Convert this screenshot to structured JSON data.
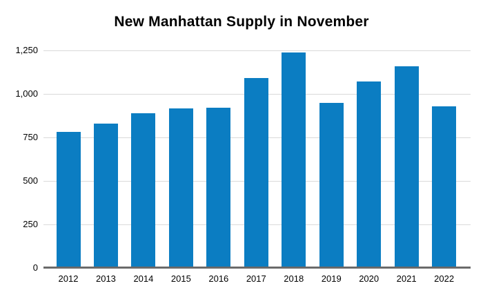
{
  "title": "New Manhattan Supply in November",
  "colors": {
    "bar": "#0b7dc2",
    "gridline": "#d9d9d9",
    "axis_line": "#6a6a6a",
    "text": "#000000",
    "background": "#ffffff"
  },
  "chart_data": {
    "type": "bar",
    "title": "New Manhattan Supply in November",
    "xlabel": "",
    "ylabel": "",
    "categories": [
      "2012",
      "2013",
      "2014",
      "2015",
      "2016",
      "2017",
      "2018",
      "2019",
      "2020",
      "2021",
      "2022"
    ],
    "values": [
      780,
      830,
      890,
      915,
      920,
      1090,
      1240,
      950,
      1070,
      1160,
      930
    ],
    "ylim": [
      0,
      1250
    ],
    "yticks": [
      0,
      250,
      500,
      750,
      1000,
      1250
    ],
    "ytick_labels": [
      "0",
      "250",
      "500",
      "750",
      "1,000",
      "1,250"
    ],
    "grid": true,
    "legend": false,
    "bar_color": "#0b7dc2"
  }
}
